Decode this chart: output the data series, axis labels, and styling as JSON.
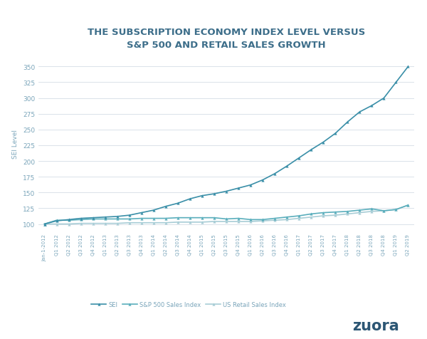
{
  "title": "THE SUBSCRIPTION ECONOMY INDEX LEVEL VERSUS\nS&P 500 AND RETAIL SALES GROWTH",
  "ylabel": "SEI Level",
  "background_color": "#ffffff",
  "title_color": "#3d6e8a",
  "grid_color": "#d5dde5",
  "text_color": "#7aa5ba",
  "x_labels": [
    "Jan-1-2012",
    "Q1 2012",
    "Q2 2012",
    "Q3 2012",
    "Q4 2012",
    "Q1 2013",
    "Q2 2013",
    "Q3 2013",
    "Q4 2013",
    "Q1 2014",
    "Q2 2014",
    "Q3 2014",
    "Q4 2014",
    "Q1 2015",
    "Q2 2015",
    "Q3 2015",
    "Q4 2015",
    "Q1 2016",
    "Q2 2016",
    "Q3 2016",
    "Q4 2016",
    "Q1 2017",
    "Q2 2017",
    "Q3 2017",
    "Q4 2017",
    "Q1 2018",
    "Q2 2018",
    "Q3 2018",
    "Q4 2018",
    "Q1 2019",
    "Q2 2019"
  ],
  "sei": [
    100,
    105,
    107,
    109,
    110,
    111,
    112,
    114,
    118,
    122,
    128,
    133,
    140,
    145,
    148,
    152,
    157,
    162,
    170,
    180,
    192,
    205,
    218,
    230,
    244,
    262,
    278,
    288,
    300,
    325,
    350
  ],
  "sp500": [
    100,
    106,
    106,
    107,
    108,
    108,
    108,
    108,
    109,
    109,
    109,
    110,
    110,
    110,
    110,
    108,
    109,
    107,
    107,
    109,
    111,
    113,
    116,
    118,
    119,
    120,
    122,
    124,
    121,
    123,
    130
  ],
  "us_retail": [
    100,
    100,
    100,
    101,
    101,
    101,
    101,
    102,
    102,
    102,
    102,
    103,
    103,
    103,
    104,
    104,
    104,
    104,
    105,
    106,
    107,
    109,
    111,
    113,
    114,
    116,
    118,
    120,
    121,
    123,
    130
  ],
  "sei_color": "#3a8fa8",
  "sp500_color": "#5aaebc",
  "retail_color": "#a8cdd6",
  "ylim": [
    90,
    365
  ],
  "yticks": [
    100,
    125,
    150,
    175,
    200,
    225,
    250,
    275,
    300,
    325,
    350
  ],
  "legend_labels": [
    "SEI",
    "S&P 500 Sales Index",
    "US Retail Sales Index"
  ],
  "zuora_color": "#2c5674",
  "marker_size": 3.0,
  "line_width": 1.2
}
